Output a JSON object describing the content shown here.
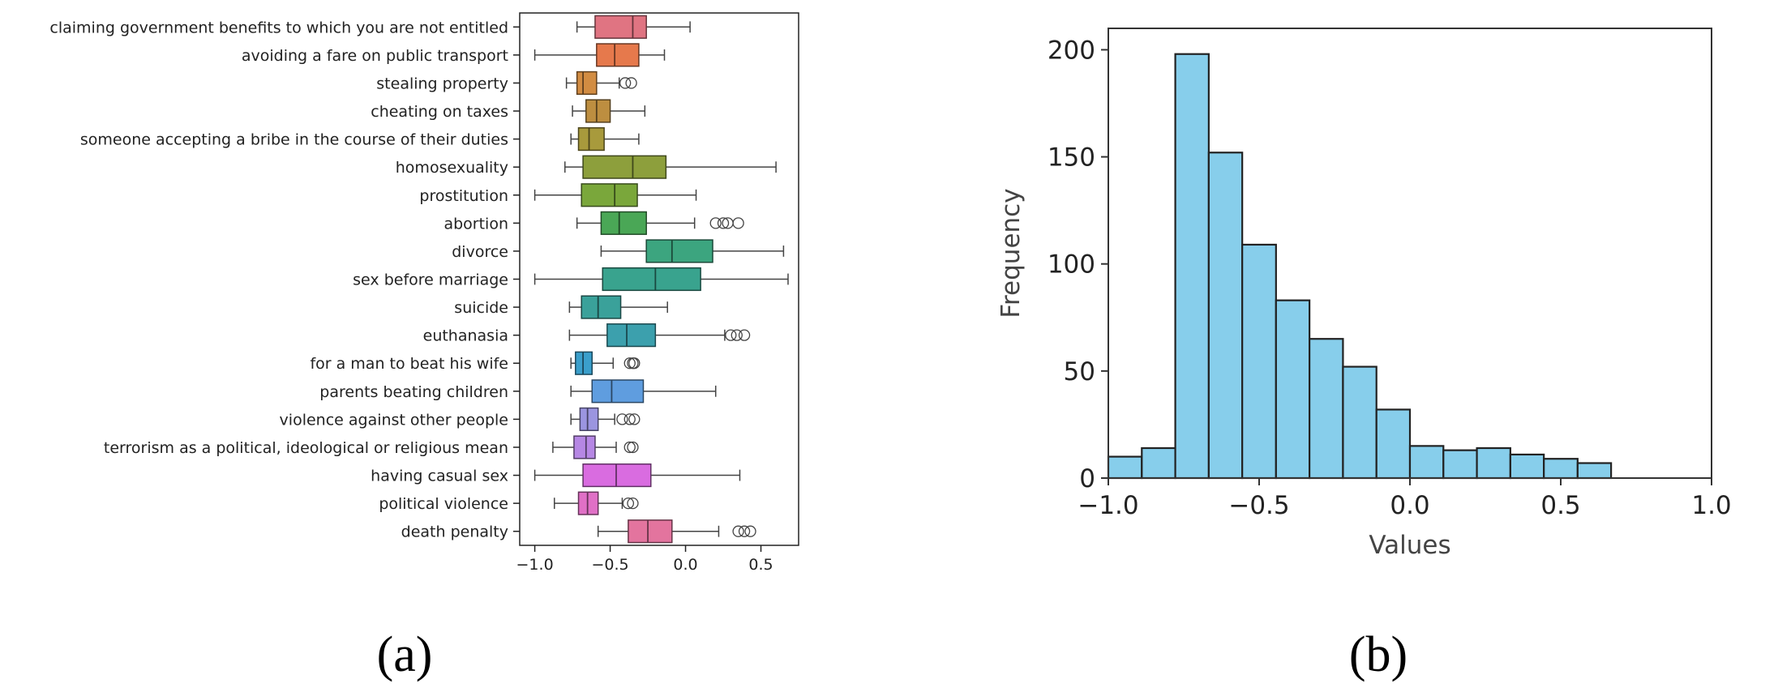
{
  "panels": {
    "a": {
      "label": "(a)"
    },
    "b": {
      "label": "(b)"
    }
  },
  "chart_data": [
    {
      "type": "box",
      "orientation": "horizontal",
      "xlim": [
        -1.1,
        0.75
      ],
      "xticks": [
        -1.0,
        -0.5,
        0.0,
        0.5
      ],
      "xtick_labels": [
        "−1.0",
        "−0.5",
        "0.0",
        "0.5"
      ],
      "grid": false,
      "categories": [
        {
          "label": "claiming government benefits to which you are not entitled",
          "whislo": -0.72,
          "q1": -0.6,
          "med": -0.35,
          "q3": -0.26,
          "whishi": 0.03,
          "fliers": [],
          "color": "#e07482"
        },
        {
          "label": "avoiding a fare on public transport",
          "whislo": -1.0,
          "q1": -0.59,
          "med": -0.47,
          "q3": -0.31,
          "whishi": -0.14,
          "fliers": [],
          "color": "#e6794c"
        },
        {
          "label": "stealing property",
          "whislo": -0.79,
          "q1": -0.72,
          "med": -0.68,
          "q3": -0.59,
          "whishi": -0.44,
          "fliers": [
            -0.4,
            -0.36
          ],
          "color": "#d28c42"
        },
        {
          "label": "cheating on taxes",
          "whislo": -0.75,
          "q1": -0.66,
          "med": -0.59,
          "q3": -0.5,
          "whishi": -0.27,
          "fliers": [],
          "color": "#bd8e40"
        },
        {
          "label": "someone accepting a bribe in the course of their duties",
          "whislo": -0.76,
          "q1": -0.71,
          "med": -0.64,
          "q3": -0.54,
          "whishi": -0.31,
          "fliers": [],
          "color": "#a89a3c"
        },
        {
          "label": "homosexuality",
          "whislo": -0.8,
          "q1": -0.68,
          "med": -0.35,
          "q3": -0.13,
          "whishi": 0.6,
          "fliers": [],
          "color": "#8d9f3c"
        },
        {
          "label": "prostitution",
          "whislo": -1.0,
          "q1": -0.69,
          "med": -0.47,
          "q3": -0.32,
          "whishi": 0.07,
          "fliers": [],
          "color": "#7aa73b"
        },
        {
          "label": "abortion",
          "whislo": -0.72,
          "q1": -0.56,
          "med": -0.44,
          "q3": -0.26,
          "whishi": 0.06,
          "fliers": [
            0.2,
            0.25,
            0.28,
            0.35
          ],
          "color": "#4aa756"
        },
        {
          "label": "divorce",
          "whislo": -0.56,
          "q1": -0.26,
          "med": -0.09,
          "q3": 0.18,
          "whishi": 0.65,
          "fliers": [],
          "color": "#3ca57f"
        },
        {
          "label": "sex before marriage",
          "whislo": -1.0,
          "q1": -0.55,
          "med": -0.2,
          "q3": 0.1,
          "whishi": 0.68,
          "fliers": [],
          "color": "#39a38e"
        },
        {
          "label": "suicide",
          "whislo": -0.77,
          "q1": -0.69,
          "med": -0.58,
          "q3": -0.43,
          "whishi": -0.12,
          "fliers": [],
          "color": "#3aa19a"
        },
        {
          "label": "euthanasia",
          "whislo": -0.77,
          "q1": -0.52,
          "med": -0.39,
          "q3": -0.2,
          "whishi": 0.26,
          "fliers": [
            0.3,
            0.34,
            0.39
          ],
          "color": "#3ca0ad"
        },
        {
          "label": "for a man to beat his wife",
          "whislo": -0.76,
          "q1": -0.73,
          "med": -0.68,
          "q3": -0.62,
          "whishi": -0.48,
          "fliers": [
            -0.37,
            -0.35,
            -0.34
          ],
          "color": "#3b9fcb"
        },
        {
          "label": "parents beating children",
          "whislo": -0.76,
          "q1": -0.62,
          "med": -0.49,
          "q3": -0.28,
          "whishi": 0.2,
          "fliers": [],
          "color": "#5f9ddf"
        },
        {
          "label": "violence against other people",
          "whislo": -0.76,
          "q1": -0.7,
          "med": -0.65,
          "q3": -0.58,
          "whishi": -0.47,
          "fliers": [
            -0.42,
            -0.37,
            -0.34
          ],
          "color": "#9b95e0"
        },
        {
          "label": "terrorism as a political, ideological or religious mean",
          "whislo": -0.88,
          "q1": -0.74,
          "med": -0.66,
          "q3": -0.6,
          "whishi": -0.46,
          "fliers": [
            -0.37,
            -0.35
          ],
          "color": "#b687e4"
        },
        {
          "label": "having casual sex",
          "whislo": -1.0,
          "q1": -0.68,
          "med": -0.46,
          "q3": -0.23,
          "whishi": 0.36,
          "fliers": [],
          "color": "#d96ce0"
        },
        {
          "label": "political violence",
          "whislo": -0.87,
          "q1": -0.71,
          "med": -0.65,
          "q3": -0.58,
          "whishi": -0.42,
          "fliers": [
            -0.38,
            -0.35
          ],
          "color": "#e070c6"
        },
        {
          "label": "death penalty",
          "whislo": -0.58,
          "q1": -0.38,
          "med": -0.25,
          "q3": -0.09,
          "whishi": 0.22,
          "fliers": [
            0.35,
            0.39,
            0.43
          ],
          "color": "#e3749e"
        }
      ]
    },
    {
      "type": "bar",
      "subtype": "histogram",
      "xlabel": "Values",
      "ylabel": "Frequency",
      "xlim": [
        -1.0,
        1.0
      ],
      "ylim": [
        0,
        210
      ],
      "xticks": [
        -1.0,
        -0.5,
        0.0,
        0.5,
        1.0
      ],
      "xtick_labels": [
        "−1.0",
        "−0.5",
        "0.0",
        "0.5",
        "1.0"
      ],
      "yticks": [
        0,
        50,
        100,
        150,
        200
      ],
      "ytick_labels": [
        "0",
        "50",
        "100",
        "150",
        "200"
      ],
      "grid": false,
      "bar_color": "#87ceeb",
      "edge_color": "#222222",
      "bin_edges": [
        -1.0,
        -0.889,
        -0.778,
        -0.667,
        -0.556,
        -0.444,
        -0.333,
        -0.222,
        -0.111,
        0.0,
        0.111,
        0.222,
        0.333,
        0.444,
        0.556,
        0.667
      ],
      "counts": [
        10,
        14,
        198,
        152,
        109,
        83,
        65,
        52,
        32,
        15,
        13,
        14,
        11,
        9,
        7
      ]
    }
  ]
}
